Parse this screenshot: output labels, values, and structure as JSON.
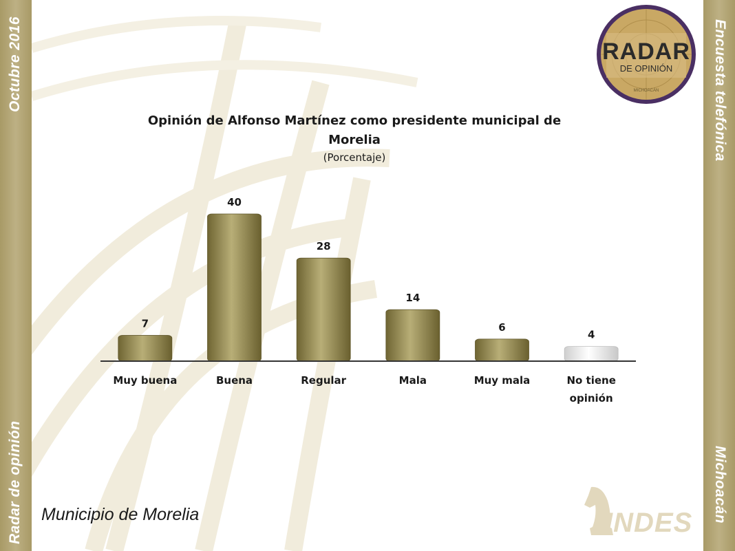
{
  "side_texts": {
    "left_top": "Octubre 2016",
    "left_bottom": "Radar de opinión",
    "right_top": "Encuesta telefónica",
    "right_bottom": "Michoacán"
  },
  "logo": {
    "title": "RADAR",
    "subtitle": "DE OPINIÓN",
    "region": "MICHOACÁN"
  },
  "footer": {
    "title": "Municipio de Morelia",
    "brand": "INDES"
  },
  "colors": {
    "band": "#b3a677",
    "bar": "#8f8448",
    "bar_light": "#b7ad78",
    "bar_none": "#eeeeee"
  },
  "chart_data": {
    "type": "bar",
    "title_lines": [
      "Opinión de Alfonso Martínez como presidente municipal de",
      "Morelia"
    ],
    "subtitle": "(Porcentaje)",
    "categories": [
      [
        "Muy buena"
      ],
      [
        "Buena"
      ],
      [
        "Regular"
      ],
      [
        "Mala"
      ],
      [
        "Muy mala"
      ],
      [
        "No tiene",
        "opinión"
      ]
    ],
    "values": [
      7,
      40,
      28,
      14,
      6,
      4
    ],
    "data_labels": [
      "7",
      "40",
      "28",
      "14",
      "6",
      "4"
    ],
    "ylim": [
      0,
      40
    ],
    "grid": false,
    "legend": "none"
  }
}
